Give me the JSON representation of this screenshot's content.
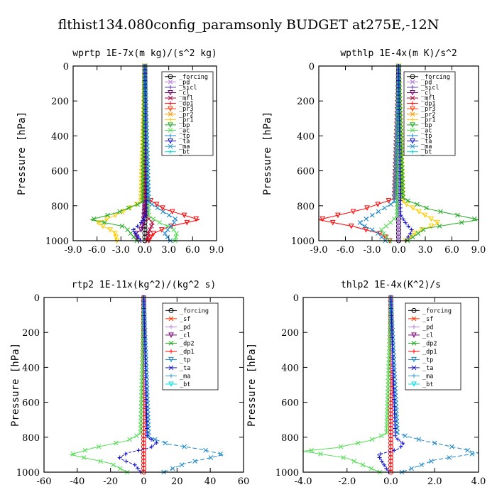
{
  "figure_title": "flthist134.080config_paramsonly  BUDGET at275E,-12N",
  "chart_data": [
    {
      "type": "line",
      "title": "wprtp  1E-7x(m kg)/(s^2 kg)",
      "ylabel": "Pressure [hPa]",
      "xlim": [
        -9,
        9
      ],
      "ylim": [
        1000,
        0
      ],
      "xticks": [
        "-9.0",
        "-6.0",
        "-3.0",
        "0.0",
        "3.0",
        "6.0",
        "9.0"
      ],
      "yticks": [
        "0",
        "200",
        "400",
        "600",
        "800",
        "1000"
      ],
      "legend": [
        "_forcing",
        "_pd",
        "_sicl",
        "_cl",
        "_mfl",
        "_dp1",
        "_pr3",
        "_pr2",
        "_pr1",
        "_bp",
        "_ac",
        "_tp",
        "_ta",
        "_ma",
        "_bt"
      ],
      "series": [
        {
          "name": "_forcing",
          "color": "#000000",
          "marker": "circle",
          "dash": "",
          "x": [
            0,
            0,
            0,
            0,
            0,
            0,
            0
          ],
          "y": [
            0,
            200,
            400,
            600,
            800,
            900,
            1000
          ]
        },
        {
          "name": "_cl",
          "color": "#7a0077",
          "marker": "tri",
          "dash": "",
          "x": [
            0,
            0,
            0,
            -0.2,
            -0.5,
            -1.2,
            -0.8
          ],
          "y": [
            0,
            400,
            800,
            900,
            940,
            960,
            1000
          ]
        },
        {
          "name": "_mfl",
          "color": "#b0003a",
          "marker": "cross",
          "dash": "",
          "x": [
            0,
            0,
            0.2,
            1.0,
            0.5,
            0.3
          ],
          "y": [
            0,
            700,
            860,
            900,
            950,
            1000
          ]
        },
        {
          "name": "_dp1",
          "color": "#ff0000",
          "marker": "tri",
          "dash": "",
          "x": [
            0,
            0,
            2.5,
            6.8,
            3.0,
            1.0,
            0.5
          ],
          "y": [
            0,
            750,
            820,
            880,
            920,
            960,
            1000
          ]
        },
        {
          "name": "_pr1",
          "color": "#ffcc00",
          "marker": "tri",
          "dash": "",
          "x": [
            0,
            -0.5,
            -3.0,
            -6.0,
            -3.8,
            -3.5
          ],
          "y": [
            0,
            780,
            840,
            900,
            950,
            1000
          ]
        },
        {
          "name": "_bp",
          "color": "#22aa22",
          "marker": "cross",
          "dash": "",
          "x": [
            0,
            -0.3,
            -3.5,
            -6.8,
            -2.5,
            -1.0
          ],
          "y": [
            0,
            780,
            840,
            880,
            920,
            1000
          ]
        },
        {
          "name": "_ac",
          "color": "#55dd55",
          "marker": "cross",
          "dash": "",
          "x": [
            0,
            0.5,
            2.0,
            3.5,
            4.0,
            3.8
          ],
          "y": [
            0,
            860,
            900,
            930,
            960,
            1000
          ]
        },
        {
          "name": "_tp",
          "color": "#1e88c8",
          "marker": "cross",
          "dash": "6,3",
          "x": [
            0,
            0.5,
            2.5,
            4.0,
            3.0,
            2.5,
            3.2
          ],
          "y": [
            0,
            780,
            840,
            880,
            930,
            960,
            1000
          ]
        },
        {
          "name": "_ta",
          "color": "#1010cc",
          "marker": "plus",
          "dash": "4,2",
          "x": [
            0,
            0.2,
            -0.5,
            -1.5,
            -1.0,
            -0.5
          ],
          "y": [
            0,
            850,
            900,
            940,
            970,
            1000
          ]
        }
      ]
    },
    {
      "type": "line",
      "title": "wpthlp  1E-4x(m K)/s^2",
      "ylabel": "Pressure [hPa]",
      "xlim": [
        -9,
        9
      ],
      "ylim": [
        1000,
        0
      ],
      "xticks": [
        "-9.0",
        "-6.0",
        "-3.0",
        "0.0",
        "3.0",
        "6.0",
        "9.0"
      ],
      "yticks": [
        "0",
        "200",
        "400",
        "600",
        "800",
        "1000"
      ],
      "legend": [
        "_forcing",
        "_pd",
        "_sicl",
        "_cl",
        "_mfl",
        "_dp1",
        "_pr3",
        "_pr2",
        "_pr1",
        "_bp",
        "_ac",
        "_tp",
        "_ta",
        "_ma",
        "_bt"
      ],
      "series": [
        {
          "name": "_forcing",
          "color": "#000000",
          "marker": "circle",
          "dash": "",
          "x": [
            0,
            0,
            0,
            0,
            0,
            0
          ],
          "y": [
            0,
            200,
            400,
            600,
            800,
            1000
          ]
        },
        {
          "name": "_pd",
          "color": "#b57edc",
          "marker": "tri",
          "dash": "",
          "x": [
            0,
            0,
            0,
            0,
            0,
            0
          ],
          "y": [
            0,
            200,
            400,
            600,
            800,
            1000
          ]
        },
        {
          "name": "_dp1",
          "color": "#ff0000",
          "marker": "tri",
          "dash": "",
          "x": [
            0,
            -0.5,
            -4.0,
            -9.0,
            -5.0,
            -2.0,
            -1.0
          ],
          "y": [
            0,
            760,
            820,
            880,
            920,
            960,
            1000
          ]
        },
        {
          "name": "_pr1",
          "color": "#ffcc00",
          "marker": "tri",
          "dash": "",
          "x": [
            0,
            0.5,
            2.5,
            4.5,
            2.0,
            0.8
          ],
          "y": [
            0,
            780,
            840,
            900,
            950,
            1000
          ]
        },
        {
          "name": "_bp",
          "color": "#22aa22",
          "marker": "cross",
          "dash": "",
          "x": [
            0,
            0.5,
            3.5,
            9.0,
            3.0,
            1.0
          ],
          "y": [
            0,
            760,
            820,
            880,
            930,
            1000
          ]
        },
        {
          "name": "_ac",
          "color": "#55dd55",
          "marker": "cross",
          "dash": "",
          "x": [
            0,
            -0.2,
            -1.0,
            -2.0,
            -1.5,
            -1.0
          ],
          "y": [
            0,
            860,
            900,
            940,
            970,
            1000
          ]
        },
        {
          "name": "_tp",
          "color": "#1e88c8",
          "marker": "cross",
          "dash": "6,3",
          "x": [
            0,
            -0.5,
            -2.5,
            -4.5,
            -2.5,
            -1.5
          ],
          "y": [
            0,
            780,
            840,
            900,
            950,
            1000
          ]
        },
        {
          "name": "_ta",
          "color": "#1010cc",
          "marker": "plus",
          "dash": "4,2",
          "x": [
            0,
            0.2,
            0.8,
            1.5,
            1.2,
            0.8
          ],
          "y": [
            0,
            850,
            900,
            940,
            970,
            1000
          ]
        }
      ]
    },
    {
      "type": "line",
      "title": "rtp2  1E-11x(kg^2)/(kg^2 s)",
      "ylabel": "Pressure [hPa]",
      "xlim": [
        -60,
        60
      ],
      "ylim": [
        1000,
        0
      ],
      "xticks": [
        "-60",
        "-40",
        "-20",
        "0",
        "20",
        "40",
        "60"
      ],
      "yticks": [
        "0",
        "200",
        "400",
        "600",
        "800",
        "1000"
      ],
      "legend": [
        "_forcing",
        "_sf",
        "_pd",
        "_cl",
        "_dp2",
        "_dp1",
        "_tp",
        "_ta",
        "_ma",
        "_bt"
      ],
      "series": [
        {
          "name": "_forcing",
          "color": "#ff0000",
          "marker": "circle",
          "dash": "",
          "x": [
            0,
            0,
            0,
            0,
            0,
            0
          ],
          "y": [
            0,
            200,
            400,
            600,
            800,
            1000
          ]
        },
        {
          "name": "_dp1",
          "color": "#55dd55",
          "marker": "cross",
          "dash": "",
          "x": [
            0,
            -2,
            -10,
            -30,
            -44,
            -20,
            -10
          ],
          "y": [
            0,
            780,
            820,
            860,
            900,
            950,
            1000
          ]
        },
        {
          "name": "_tp",
          "color": "#1e88c8",
          "marker": "cross",
          "dash": "6,3",
          "x": [
            0,
            3,
            15,
            35,
            48,
            25,
            12
          ],
          "y": [
            0,
            800,
            840,
            870,
            900,
            950,
            1000
          ]
        },
        {
          "name": "_ta",
          "color": "#1010cc",
          "marker": "plus",
          "dash": "4,2",
          "x": [
            0,
            2,
            8,
            4,
            -10,
            -15,
            -5,
            -2
          ],
          "y": [
            0,
            800,
            830,
            860,
            890,
            920,
            960,
            1000
          ]
        }
      ]
    },
    {
      "type": "line",
      "title": "thlp2  1E-4x(K^2)/s",
      "ylabel": "Pressure [hPa]",
      "xlim": [
        -4,
        4
      ],
      "ylim": [
        1000,
        0
      ],
      "xticks": [
        "-4.0",
        "-2.0",
        "0.0",
        "2.0",
        "4.0"
      ],
      "yticks": [
        "0",
        "200",
        "400",
        "600",
        "800",
        "1000"
      ],
      "legend": [
        "_forcing",
        "_sf",
        "_pd",
        "_cl",
        "_dp2",
        "_dp1",
        "_tp",
        "_ta",
        "_ma",
        "_bt"
      ],
      "series": [
        {
          "name": "_forcing",
          "color": "#ff0000",
          "marker": "circle",
          "dash": "",
          "x": [
            0,
            0,
            0,
            0,
            0,
            0
          ],
          "y": [
            0,
            200,
            400,
            600,
            800,
            1000
          ]
        },
        {
          "name": "_dp1",
          "color": "#55dd55",
          "marker": "cross",
          "dash": "",
          "x": [
            0,
            -0.2,
            -1.0,
            -2.5,
            -4.0,
            -2.0,
            -0.5
          ],
          "y": [
            0,
            780,
            820,
            860,
            880,
            920,
            1000
          ]
        },
        {
          "name": "_tp",
          "color": "#1e88c8",
          "marker": "cross",
          "dash": "6,3",
          "x": [
            0,
            0.3,
            1.5,
            3.0,
            4.0,
            2.0,
            0.5
          ],
          "y": [
            0,
            780,
            820,
            860,
            890,
            930,
            1000
          ]
        },
        {
          "name": "_ta",
          "color": "#1010cc",
          "marker": "plus",
          "dash": "4,2",
          "x": [
            0,
            0.2,
            0.6,
            0.3,
            -0.6,
            -0.4,
            -0.1
          ],
          "y": [
            0,
            800,
            840,
            870,
            900,
            940,
            1000
          ]
        }
      ]
    }
  ]
}
